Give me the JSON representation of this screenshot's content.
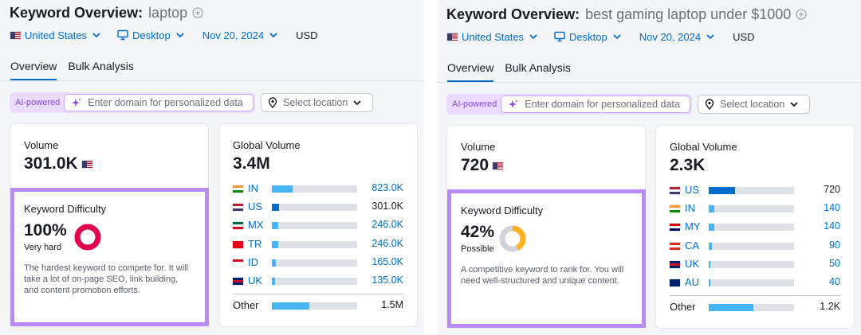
{
  "panels": [
    {
      "title": "Keyword Overview:",
      "keyword": "laptop",
      "location": "United States",
      "device": "Desktop",
      "date": "Nov 20, 2024",
      "currency": "USD",
      "tabs": [
        "Overview",
        "Bulk Analysis"
      ],
      "ai_badge": "AI-powered",
      "domain_placeholder": "Enter domain for personalized data",
      "location_placeholder": "Select location",
      "volume": {
        "label": "Volume",
        "value": "301.0K"
      },
      "difficulty": {
        "label": "Keyword Difficulty",
        "score": {
          "value": 100,
          "label": "100%"
        },
        "level": "Very hard",
        "color": "#e0004d",
        "description": "The hardest keyword to compete for. It will take a lot of on-page SEO, link building, and content promotion efforts."
      },
      "global_volume": {
        "label": "Global Volume",
        "total": {
          "value": 3400000,
          "label": "3.4M"
        },
        "countries": [
          {
            "code": "IN",
            "volume": {
              "value": 823000,
              "label": "823.0K"
            },
            "bar_color": "#45b5f5",
            "text_color": "#006dca",
            "flag": [
              "#ff9933",
              "#ffffff",
              "#138808"
            ]
          },
          {
            "code": "US",
            "volume": {
              "value": 301000,
              "label": "301.0K"
            },
            "bar_color": "#006dca",
            "text_color": "#191b23",
            "flag": [
              "#b22234",
              "#ffffff",
              "#3c3b6e"
            ]
          },
          {
            "code": "MX",
            "volume": {
              "value": 246000,
              "label": "246.0K"
            },
            "bar_color": "#45b5f5",
            "text_color": "#006dca",
            "flag": [
              "#006847",
              "#ffffff",
              "#ce1126"
            ]
          },
          {
            "code": "TR",
            "volume": {
              "value": 246000,
              "label": "246.0K"
            },
            "bar_color": "#45b5f5",
            "text_color": "#006dca",
            "flag": [
              "#e30a17",
              "#e30a17",
              "#e30a17"
            ]
          },
          {
            "code": "ID",
            "volume": {
              "value": 165000,
              "label": "165.0K"
            },
            "bar_color": "#45b5f5",
            "text_color": "#006dca",
            "flag": [
              "#ce1126",
              "#ffffff",
              "#ffffff"
            ]
          },
          {
            "code": "UK",
            "volume": {
              "value": 135000,
              "label": "135.0K"
            },
            "bar_color": "#45b5f5",
            "text_color": "#006dca",
            "flag": [
              "#012169",
              "#c8102e",
              "#012169"
            ]
          }
        ],
        "other": {
          "label": "Other",
          "volume": {
            "value": 1500000,
            "label": "1.5M"
          },
          "bar_color": "#45b5f5",
          "text_color": "#191b23"
        }
      }
    },
    {
      "title": "Keyword Overview:",
      "keyword": "best gaming laptop under $1000",
      "location": "United States",
      "device": "Desktop",
      "date": "Nov 20, 2024",
      "currency": "USD",
      "tabs": [
        "Overview",
        "Bulk Analysis"
      ],
      "ai_badge": "AI-powered",
      "domain_placeholder": "Enter domain for personalized data",
      "location_placeholder": "Select location",
      "volume": {
        "label": "Volume",
        "value": "720"
      },
      "difficulty": {
        "label": "Keyword Difficulty",
        "score": {
          "value": 42,
          "label": "42%"
        },
        "level": "Possible",
        "color": "#ffb01d",
        "description": "A competitive keyword to rank for. You will need well-structured and unique content."
      },
      "global_volume": {
        "label": "Global Volume",
        "total": {
          "value": 2300,
          "label": "2.3K"
        },
        "countries": [
          {
            "code": "US",
            "volume": {
              "value": 720,
              "label": "720"
            },
            "bar_color": "#006dca",
            "text_color": "#191b23",
            "flag": [
              "#b22234",
              "#ffffff",
              "#3c3b6e"
            ]
          },
          {
            "code": "IN",
            "volume": {
              "value": 140,
              "label": "140"
            },
            "bar_color": "#45b5f5",
            "text_color": "#006dca",
            "flag": [
              "#ff9933",
              "#ffffff",
              "#138808"
            ]
          },
          {
            "code": "MY",
            "volume": {
              "value": 140,
              "label": "140"
            },
            "bar_color": "#45b5f5",
            "text_color": "#006dca",
            "flag": [
              "#cc0001",
              "#ffffff",
              "#010066"
            ]
          },
          {
            "code": "CA",
            "volume": {
              "value": 90,
              "label": "90"
            },
            "bar_color": "#45b5f5",
            "text_color": "#006dca",
            "flag": [
              "#d52b1e",
              "#ffffff",
              "#d52b1e"
            ]
          },
          {
            "code": "UK",
            "volume": {
              "value": 50,
              "label": "50"
            },
            "bar_color": "#45b5f5",
            "text_color": "#006dca",
            "flag": [
              "#012169",
              "#c8102e",
              "#012169"
            ]
          },
          {
            "code": "AU",
            "volume": {
              "value": 40,
              "label": "40"
            },
            "bar_color": "#45b5f5",
            "text_color": "#006dca",
            "flag": [
              "#012169",
              "#012169",
              "#012169"
            ]
          }
        ],
        "other": {
          "label": "Other",
          "volume": {
            "value": 1200,
            "label": "1.2K"
          },
          "bar_color": "#45b5f5",
          "text_color": "#191b23"
        }
      }
    }
  ]
}
